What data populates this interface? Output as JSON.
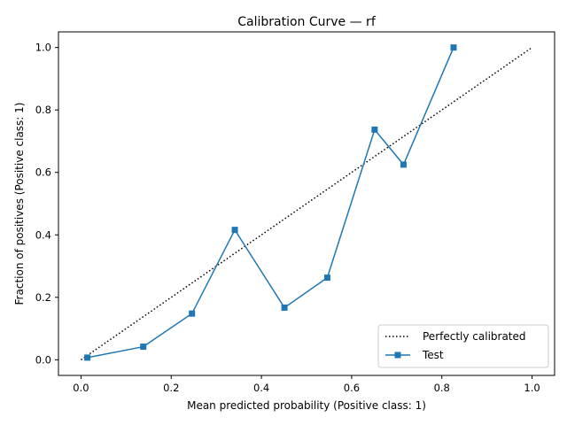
{
  "chart_data": {
    "type": "line",
    "title": "Calibration Curve — rf",
    "xlabel": "Mean predicted probability (Positive class: 1)",
    "ylabel": "Fraction of positives (Positive class: 1)",
    "xlim": [
      -0.05,
      1.05
    ],
    "ylim": [
      -0.05,
      1.05
    ],
    "xticks": [
      "0.0",
      "0.2",
      "0.4",
      "0.6",
      "0.8",
      "1.0"
    ],
    "yticks": [
      "0.0",
      "0.2",
      "0.4",
      "0.6",
      "0.8",
      "1.0"
    ],
    "grid": false,
    "legend_position": "bottom-right",
    "series": [
      {
        "name": "Perfectly calibrated",
        "style": "dotted",
        "color": "#000000",
        "x": [
          0,
          1
        ],
        "y": [
          0,
          1
        ]
      },
      {
        "name": "Test",
        "style": "solid",
        "marker": "square",
        "color": "#1f77b4",
        "x": [
          0.014,
          0.138,
          0.246,
          0.341,
          0.451,
          0.546,
          0.651,
          0.715,
          0.826
        ],
        "y": [
          0.007,
          0.042,
          0.148,
          0.416,
          0.167,
          0.263,
          0.737,
          0.625,
          1.0
        ]
      }
    ]
  }
}
